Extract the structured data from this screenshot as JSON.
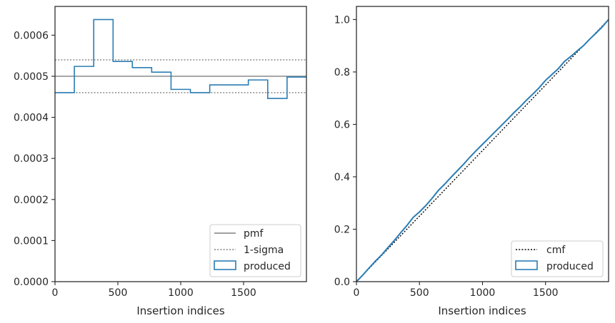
{
  "chart_data": [
    {
      "type": "step",
      "xlabel": "Insertion indices",
      "ylabel": "",
      "xlim": [
        0,
        2000
      ],
      "ylim": [
        0,
        0.00067
      ],
      "x_ticks": [
        0,
        500,
        1000,
        1500
      ],
      "x_tick_labels": [
        "0",
        "500",
        "1000",
        "1500"
      ],
      "y_ticks": [
        0,
        0.0001,
        0.0002,
        0.0003,
        0.0004,
        0.0005,
        0.0006
      ],
      "y_tick_labels": [
        "0.0000",
        "0.0001",
        "0.0002",
        "0.0003",
        "0.0004",
        "0.0005",
        "0.0006"
      ],
      "grid": false,
      "legend_position": "lower right",
      "series": [
        {
          "name": "pmf",
          "kind": "hline",
          "y": 0.0005,
          "color": "#808080",
          "style": "solid"
        },
        {
          "name": "1-sigma",
          "kind": "hlines",
          "y": [
            0.00054,
            0.00046
          ],
          "color": "#808080",
          "style": "dotted"
        },
        {
          "name": "produced",
          "kind": "histogram",
          "bin_edges": [
            0,
            154,
            308,
            462,
            615,
            769,
            923,
            1077,
            1231,
            1385,
            1538,
            1692,
            1846,
            2000
          ],
          "values": [
            0.00046,
            0.000524,
            0.000638,
            0.000536,
            0.000521,
            0.00051,
            0.000468,
            0.00046,
            0.000479,
            0.000479,
            0.000491,
            0.000446,
            0.000498
          ],
          "color": "#2a7db5"
        }
      ]
    },
    {
      "type": "line",
      "xlabel": "Insertion indices",
      "ylabel": "",
      "xlim": [
        0,
        2000
      ],
      "ylim": [
        0,
        1.05
      ],
      "x_ticks": [
        0,
        500,
        1000,
        1500
      ],
      "x_tick_labels": [
        "0",
        "500",
        "1000",
        "1500"
      ],
      "y_ticks": [
        0,
        0.2,
        0.4,
        0.6,
        0.8,
        1.0
      ],
      "y_tick_labels": [
        "0.0",
        "0.2",
        "0.4",
        "0.6",
        "0.8",
        "1.0"
      ],
      "grid": false,
      "legend_position": "lower right",
      "series": [
        {
          "name": "cmf",
          "kind": "line",
          "x": [
            0,
            2000
          ],
          "y": [
            0,
            1.0
          ],
          "color": "#000000",
          "style": "dotted"
        },
        {
          "name": "produced",
          "kind": "cumulative",
          "x": [
            0,
            50,
            100,
            150,
            200,
            250,
            300,
            350,
            400,
            450,
            500,
            550,
            600,
            650,
            700,
            750,
            800,
            850,
            900,
            950,
            1000,
            1050,
            1100,
            1150,
            1200,
            1250,
            1300,
            1350,
            1400,
            1450,
            1500,
            1550,
            1600,
            1650,
            1700,
            1750,
            1800,
            1850,
            1900,
            1950,
            2000
          ],
          "y": [
            0,
            0.025,
            0.052,
            0.078,
            0.102,
            0.13,
            0.157,
            0.186,
            0.214,
            0.245,
            0.266,
            0.29,
            0.318,
            0.348,
            0.372,
            0.398,
            0.423,
            0.448,
            0.475,
            0.5,
            0.524,
            0.548,
            0.572,
            0.596,
            0.62,
            0.645,
            0.668,
            0.693,
            0.716,
            0.74,
            0.768,
            0.79,
            0.812,
            0.84,
            0.859,
            0.88,
            0.9,
            0.925,
            0.948,
            0.972,
            1.0
          ],
          "color": "#2a7db5"
        }
      ]
    }
  ]
}
